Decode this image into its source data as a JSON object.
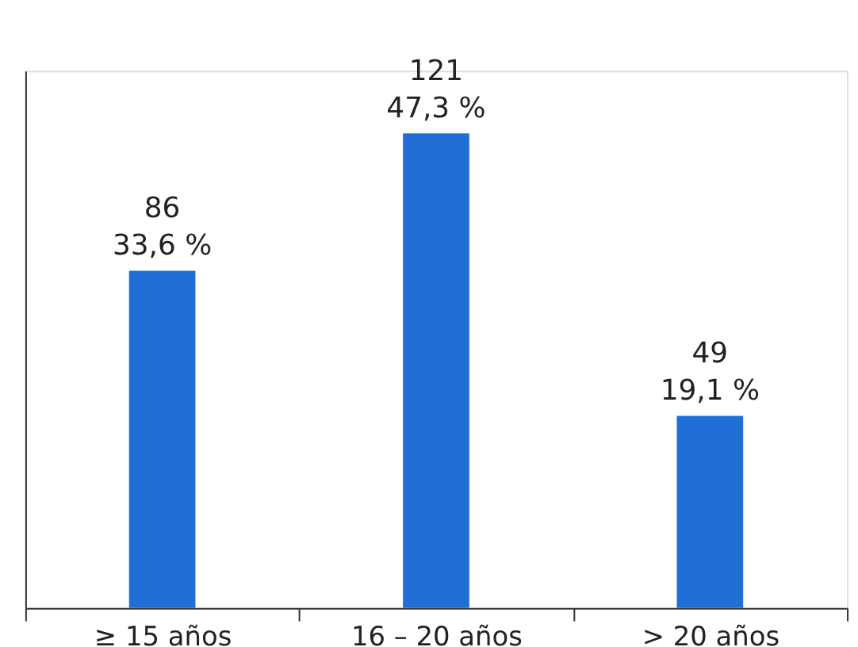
{
  "chart_data": {
    "type": "bar",
    "categories": [
      "≥ 15 años",
      "16 – 20 años",
      "> 20 años"
    ],
    "values": [
      86,
      121,
      49
    ],
    "color": "#1f6fd6",
    "value_labels": [
      "86\n33,6 %",
      "121\n47,3 %",
      "49\n19,1 %"
    ],
    "ylim": [
      0,
      137
    ],
    "tick_labels": "x",
    "grid": false
  }
}
